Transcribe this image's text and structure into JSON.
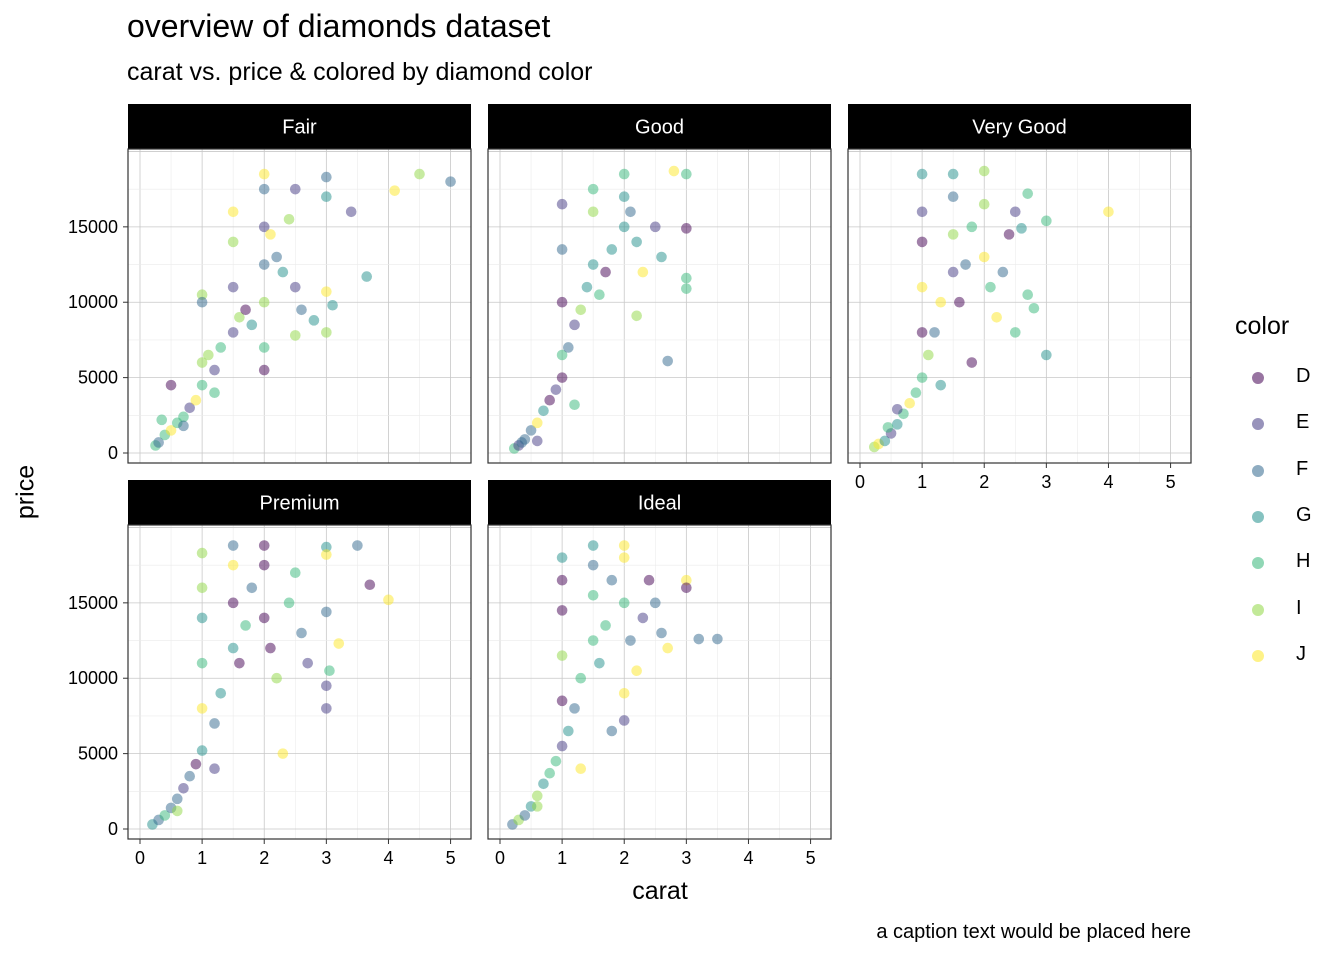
{
  "chart_data": {
    "type": "scatter",
    "title": "overview of diamonds dataset",
    "subtitle": "carat vs. price & colored by diamond color",
    "caption": "a caption text would be placed here",
    "xlabel": "carat",
    "ylabel": "price",
    "xlim": [
      0,
      5.2
    ],
    "ylim": [
      0,
      19500
    ],
    "x_ticks": [
      0,
      1,
      2,
      3,
      4,
      5
    ],
    "y_ticks": [
      0,
      5000,
      10000,
      15000
    ],
    "grid": true,
    "facet_by": "cut",
    "facets": [
      "Fair",
      "Good",
      "Very Good",
      "Premium",
      "Ideal"
    ],
    "legend": {
      "title": "color",
      "placement": "right",
      "entries": [
        "D",
        "E",
        "F",
        "G",
        "H",
        "I",
        "J"
      ],
      "colors": [
        "#440154",
        "#443A83",
        "#31688E",
        "#21908C",
        "#35B779",
        "#8FD744",
        "#FDE725"
      ]
    },
    "point_alpha": 0.5,
    "panels": [
      {
        "facet": "Fair",
        "points": [
          [
            0.25,
            500
          ],
          [
            0.3,
            700
          ],
          [
            0.4,
            1200
          ],
          [
            0.5,
            1500
          ],
          [
            0.6,
            2000
          ],
          [
            0.7,
            2400
          ],
          [
            0.8,
            3000
          ],
          [
            0.9,
            3500
          ],
          [
            1.0,
            4500
          ],
          [
            1.0,
            6000
          ],
          [
            1.0,
            10500
          ],
          [
            1.0,
            10000
          ],
          [
            1.1,
            6500
          ],
          [
            1.2,
            5500
          ],
          [
            1.3,
            7000
          ],
          [
            1.5,
            8000
          ],
          [
            1.5,
            11000
          ],
          [
            1.5,
            14000
          ],
          [
            1.5,
            16000
          ],
          [
            1.6,
            9000
          ],
          [
            1.7,
            9500
          ],
          [
            1.8,
            8500
          ],
          [
            2.0,
            10000
          ],
          [
            2.0,
            12500
          ],
          [
            2.0,
            15000
          ],
          [
            2.0,
            17500
          ],
          [
            2.0,
            18500
          ],
          [
            2.1,
            14500
          ],
          [
            2.2,
            13000
          ],
          [
            2.3,
            12000
          ],
          [
            2.4,
            15500
          ],
          [
            2.5,
            17500
          ],
          [
            2.5,
            11000
          ],
          [
            2.6,
            9500
          ],
          [
            3.0,
            18300
          ],
          [
            3.0,
            17000
          ],
          [
            3.0,
            10700
          ],
          [
            3.1,
            9800
          ],
          [
            3.0,
            8000
          ],
          [
            3.4,
            16000
          ],
          [
            3.65,
            11700
          ],
          [
            4.1,
            17400
          ],
          [
            4.5,
            18500
          ],
          [
            5.0,
            18000
          ],
          [
            2.8,
            8800
          ],
          [
            2.5,
            7800
          ],
          [
            2.0,
            7000
          ],
          [
            2.0,
            5500
          ],
          [
            1.2,
            4000
          ],
          [
            0.5,
            4500
          ],
          [
            0.35,
            2200
          ],
          [
            0.7,
            1800
          ]
        ]
      },
      {
        "facet": "Good",
        "points": [
          [
            0.23,
            300
          ],
          [
            0.3,
            500
          ],
          [
            0.35,
            700
          ],
          [
            0.4,
            900
          ],
          [
            0.5,
            1500
          ],
          [
            0.6,
            2000
          ],
          [
            0.7,
            2800
          ],
          [
            0.8,
            3500
          ],
          [
            0.9,
            4200
          ],
          [
            1.0,
            5000
          ],
          [
            1.0,
            6500
          ],
          [
            1.0,
            10000
          ],
          [
            1.0,
            13500
          ],
          [
            1.0,
            16500
          ],
          [
            1.1,
            7000
          ],
          [
            1.2,
            8500
          ],
          [
            1.3,
            9500
          ],
          [
            1.4,
            11000
          ],
          [
            1.5,
            12500
          ],
          [
            1.5,
            16000
          ],
          [
            1.5,
            17500
          ],
          [
            1.6,
            10500
          ],
          [
            1.7,
            12000
          ],
          [
            1.8,
            13500
          ],
          [
            2.0,
            15000
          ],
          [
            2.0,
            17000
          ],
          [
            2.0,
            18500
          ],
          [
            2.1,
            16000
          ],
          [
            2.2,
            14000
          ],
          [
            2.3,
            12000
          ],
          [
            2.5,
            15000
          ],
          [
            2.6,
            13000
          ],
          [
            2.8,
            18700
          ],
          [
            3.0,
            18500
          ],
          [
            3.0,
            14900
          ],
          [
            3.0,
            11600
          ],
          [
            3.0,
            10900
          ],
          [
            2.7,
            6100
          ],
          [
            2.2,
            9100
          ],
          [
            1.2,
            3200
          ],
          [
            0.6,
            800
          ]
        ]
      },
      {
        "facet": "Very Good",
        "points": [
          [
            0.23,
            400
          ],
          [
            0.3,
            600
          ],
          [
            0.4,
            800
          ],
          [
            0.5,
            1300
          ],
          [
            0.6,
            1900
          ],
          [
            0.7,
            2600
          ],
          [
            0.8,
            3300
          ],
          [
            0.9,
            4000
          ],
          [
            1.0,
            5000
          ],
          [
            1.0,
            8000
          ],
          [
            1.0,
            11000
          ],
          [
            1.0,
            14000
          ],
          [
            1.0,
            16000
          ],
          [
            1.0,
            18500
          ],
          [
            1.1,
            6500
          ],
          [
            1.2,
            8000
          ],
          [
            1.3,
            10000
          ],
          [
            1.5,
            12000
          ],
          [
            1.5,
            14500
          ],
          [
            1.5,
            17000
          ],
          [
            1.5,
            18500
          ],
          [
            1.6,
            10000
          ],
          [
            1.7,
            12500
          ],
          [
            1.8,
            15000
          ],
          [
            2.0,
            16500
          ],
          [
            2.0,
            18700
          ],
          [
            2.0,
            13000
          ],
          [
            2.1,
            11000
          ],
          [
            2.2,
            9000
          ],
          [
            2.3,
            12000
          ],
          [
            2.4,
            14500
          ],
          [
            2.5,
            16000
          ],
          [
            2.6,
            14900
          ],
          [
            2.7,
            17200
          ],
          [
            2.7,
            10500
          ],
          [
            2.8,
            9600
          ],
          [
            3.0,
            6500
          ],
          [
            3.0,
            15400
          ],
          [
            4.0,
            16000
          ],
          [
            2.5,
            8000
          ],
          [
            1.8,
            6000
          ],
          [
            1.3,
            4500
          ],
          [
            0.6,
            2900
          ],
          [
            0.45,
            1700
          ]
        ]
      },
      {
        "facet": "Premium",
        "points": [
          [
            0.2,
            300
          ],
          [
            0.3,
            600
          ],
          [
            0.4,
            900
          ],
          [
            0.5,
            1400
          ],
          [
            0.6,
            2000
          ],
          [
            0.7,
            2700
          ],
          [
            0.8,
            3500
          ],
          [
            0.9,
            4300
          ],
          [
            1.0,
            5200
          ],
          [
            1.0,
            8000
          ],
          [
            1.0,
            11000
          ],
          [
            1.0,
            14000
          ],
          [
            1.0,
            16000
          ],
          [
            1.0,
            18300
          ],
          [
            1.2,
            7000
          ],
          [
            1.3,
            9000
          ],
          [
            1.5,
            12000
          ],
          [
            1.5,
            15000
          ],
          [
            1.5,
            17500
          ],
          [
            1.5,
            18800
          ],
          [
            1.6,
            11000
          ],
          [
            1.7,
            13500
          ],
          [
            1.8,
            16000
          ],
          [
            2.0,
            17500
          ],
          [
            2.0,
            18800
          ],
          [
            2.0,
            14000
          ],
          [
            2.1,
            12000
          ],
          [
            2.2,
            10000
          ],
          [
            2.4,
            15000
          ],
          [
            2.5,
            17000
          ],
          [
            2.6,
            13000
          ],
          [
            2.7,
            11000
          ],
          [
            3.0,
            18700
          ],
          [
            3.0,
            18200
          ],
          [
            3.5,
            18800
          ],
          [
            3.7,
            16200
          ],
          [
            4.0,
            15200
          ],
          [
            3.0,
            14400
          ],
          [
            3.2,
            12300
          ],
          [
            3.0,
            9500
          ],
          [
            3.0,
            8000
          ],
          [
            3.05,
            10500
          ],
          [
            2.3,
            5000
          ],
          [
            1.2,
            4000
          ],
          [
            0.6,
            1200
          ]
        ]
      },
      {
        "facet": "Ideal",
        "points": [
          [
            0.2,
            300
          ],
          [
            0.3,
            600
          ],
          [
            0.4,
            900
          ],
          [
            0.5,
            1500
          ],
          [
            0.6,
            2200
          ],
          [
            0.7,
            3000
          ],
          [
            0.8,
            3700
          ],
          [
            0.9,
            4500
          ],
          [
            1.0,
            5500
          ],
          [
            1.0,
            8500
          ],
          [
            1.0,
            11500
          ],
          [
            1.0,
            14500
          ],
          [
            1.0,
            16500
          ],
          [
            1.0,
            18000
          ],
          [
            1.1,
            6500
          ],
          [
            1.2,
            8000
          ],
          [
            1.3,
            10000
          ],
          [
            1.5,
            12500
          ],
          [
            1.5,
            15500
          ],
          [
            1.5,
            17500
          ],
          [
            1.5,
            18800
          ],
          [
            1.6,
            11000
          ],
          [
            1.7,
            13500
          ],
          [
            1.8,
            16500
          ],
          [
            2.0,
            18000
          ],
          [
            2.0,
            18800
          ],
          [
            2.0,
            15000
          ],
          [
            2.1,
            12500
          ],
          [
            2.2,
            10500
          ],
          [
            2.3,
            14000
          ],
          [
            2.4,
            16500
          ],
          [
            2.5,
            15000
          ],
          [
            2.6,
            13000
          ],
          [
            2.7,
            12000
          ],
          [
            3.0,
            16500
          ],
          [
            3.0,
            16000
          ],
          [
            3.2,
            12600
          ],
          [
            3.5,
            12600
          ],
          [
            2.0,
            7200
          ],
          [
            2.0,
            9000
          ],
          [
            1.8,
            6500
          ],
          [
            1.3,
            4000
          ],
          [
            0.6,
            1500
          ]
        ]
      }
    ]
  }
}
